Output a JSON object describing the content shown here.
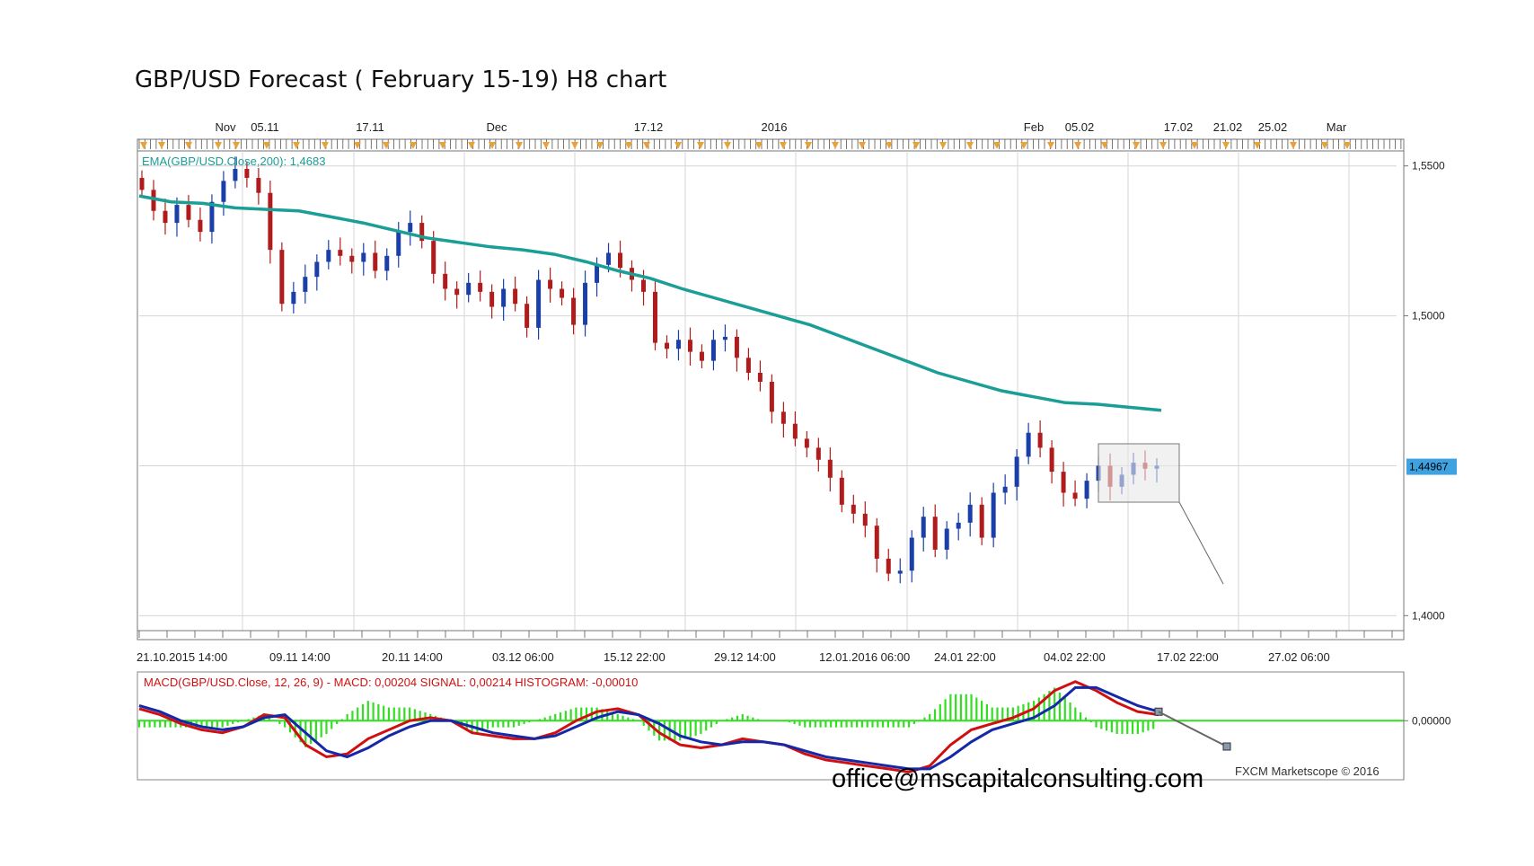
{
  "title": "GBP/USD Forecast ( February 15-19) H8 chart",
  "footer_email": "office@mscapitalconsulting.com",
  "chart_data": [
    {
      "type": "candlestick",
      "title": "GBP/USD Forecast ( February 15-19) H8 chart",
      "ylim": [
        1.395,
        1.555
      ],
      "y_ticks": [
        "1,5500",
        "1,5000",
        "1,4000"
      ],
      "last_price_label": "1,44967",
      "last_price": 1.44967,
      "top_axis_labels": [
        "Nov",
        "05.11",
        "17.11",
        "Dec",
        "17.12",
        "2016",
        "Feb",
        "05.02",
        "17.02",
        "21.02",
        "25.02",
        "Mar"
      ],
      "bottom_axis_labels": [
        "21.10.2015 14:00",
        "09.11 14:00",
        "20.11 14:00",
        "03.12 06:00",
        "15.12 22:00",
        "29.12 14:00",
        "12.01.2016 06:00",
        "24.01 22:00",
        "04.02 22:00",
        "17.02 22:00",
        "27.02 06:00"
      ],
      "indicator_label": "EMA(GBP/USD.Close,200): 1,4683",
      "ema_color": "#1a9e96",
      "up_color": "#1a3fa8",
      "down_color": "#b01b1b",
      "closes": [
        1.542,
        1.535,
        1.531,
        1.537,
        1.532,
        1.528,
        1.538,
        1.545,
        1.549,
        1.546,
        1.541,
        1.522,
        1.504,
        1.508,
        1.513,
        1.518,
        1.522,
        1.52,
        1.518,
        1.521,
        1.515,
        1.52,
        1.528,
        1.531,
        1.525,
        1.514,
        1.509,
        1.507,
        1.511,
        1.508,
        1.503,
        1.509,
        1.504,
        1.496,
        1.512,
        1.509,
        1.506,
        1.497,
        1.511,
        1.517,
        1.521,
        1.516,
        1.512,
        1.508,
        1.491,
        1.489,
        1.492,
        1.488,
        1.485,
        1.492,
        1.493,
        1.486,
        1.481,
        1.478,
        1.468,
        1.464,
        1.459,
        1.456,
        1.452,
        1.446,
        1.437,
        1.434,
        1.43,
        1.419,
        1.414,
        1.415,
        1.426,
        1.433,
        1.422,
        1.429,
        1.431,
        1.437,
        1.426,
        1.441,
        1.443,
        1.453,
        1.461,
        1.456,
        1.448,
        1.441,
        1.439,
        1.445,
        1.45,
        1.443,
        1.447,
        1.451,
        1.449,
        1.45
      ],
      "ema": [
        1.54,
        1.538,
        1.5375,
        1.536,
        1.5355,
        1.535,
        1.533,
        1.531,
        1.5285,
        1.526,
        1.5245,
        1.523,
        1.522,
        1.5205,
        1.518,
        1.515,
        1.5125,
        1.509,
        1.506,
        1.503,
        1.5,
        1.497,
        1.493,
        1.489,
        1.485,
        1.481,
        1.478,
        1.475,
        1.473,
        1.471,
        1.4705,
        1.4695,
        1.4685
      ],
      "macd": {
        "label": "MACD(GBP/USD.Close, 12, 26, 9) -  MACD: 0,00204  SIGNAL: 0,00214  HISTOGRAM: -0,00010",
        "zero_label": "0,00000",
        "macd_color": "#d01010",
        "signal_color": "#1528a8",
        "hist_color": "#33dd22",
        "macd_line": [
          0.004,
          0.002,
          -0.001,
          -0.003,
          -0.004,
          -0.002,
          0.002,
          0.001,
          -0.008,
          -0.012,
          -0.011,
          -0.006,
          -0.003,
          0.0,
          0.001,
          0.0,
          -0.004,
          -0.005,
          -0.006,
          -0.006,
          -0.004,
          0.0,
          0.003,
          0.004,
          0.002,
          -0.004,
          -0.008,
          -0.009,
          -0.008,
          -0.006,
          -0.007,
          -0.008,
          -0.011,
          -0.013,
          -0.014,
          -0.015,
          -0.016,
          -0.017,
          -0.015,
          -0.008,
          -0.003,
          -0.001,
          0.001,
          0.004,
          0.01,
          0.013,
          0.01,
          0.006,
          0.003,
          0.002
        ],
        "signal_line": [
          0.005,
          0.003,
          0.0,
          -0.002,
          -0.003,
          -0.002,
          0.001,
          0.002,
          -0.004,
          -0.01,
          -0.012,
          -0.009,
          -0.005,
          -0.002,
          0.0,
          0.0,
          -0.002,
          -0.004,
          -0.005,
          -0.006,
          -0.005,
          -0.002,
          0.001,
          0.003,
          0.002,
          -0.001,
          -0.005,
          -0.007,
          -0.008,
          -0.007,
          -0.007,
          -0.008,
          -0.01,
          -0.012,
          -0.013,
          -0.014,
          -0.015,
          -0.016,
          -0.016,
          -0.012,
          -0.007,
          -0.003,
          -0.001,
          0.001,
          0.005,
          0.011,
          0.011,
          0.008,
          0.005,
          0.003
        ],
        "ylim": [
          -0.019,
          0.015
        ],
        "watermark": "FXCM Marketscope © 2016"
      }
    }
  ]
}
